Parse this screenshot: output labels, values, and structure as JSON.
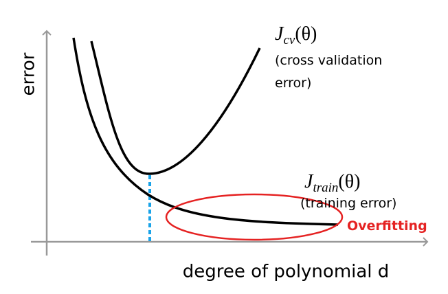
{
  "axes": {
    "y_label": "error",
    "x_label": "degree of polynomial d"
  },
  "curves": [
    {
      "symbol": "J",
      "subscript": "cv",
      "argument": "(θ)",
      "description": [
        "(cross validation",
        "error)"
      ]
    },
    {
      "symbol": "J",
      "subscript": "train",
      "argument": "(θ)",
      "description": [
        "(training error)"
      ]
    }
  ],
  "annotation": "Overfitting"
}
